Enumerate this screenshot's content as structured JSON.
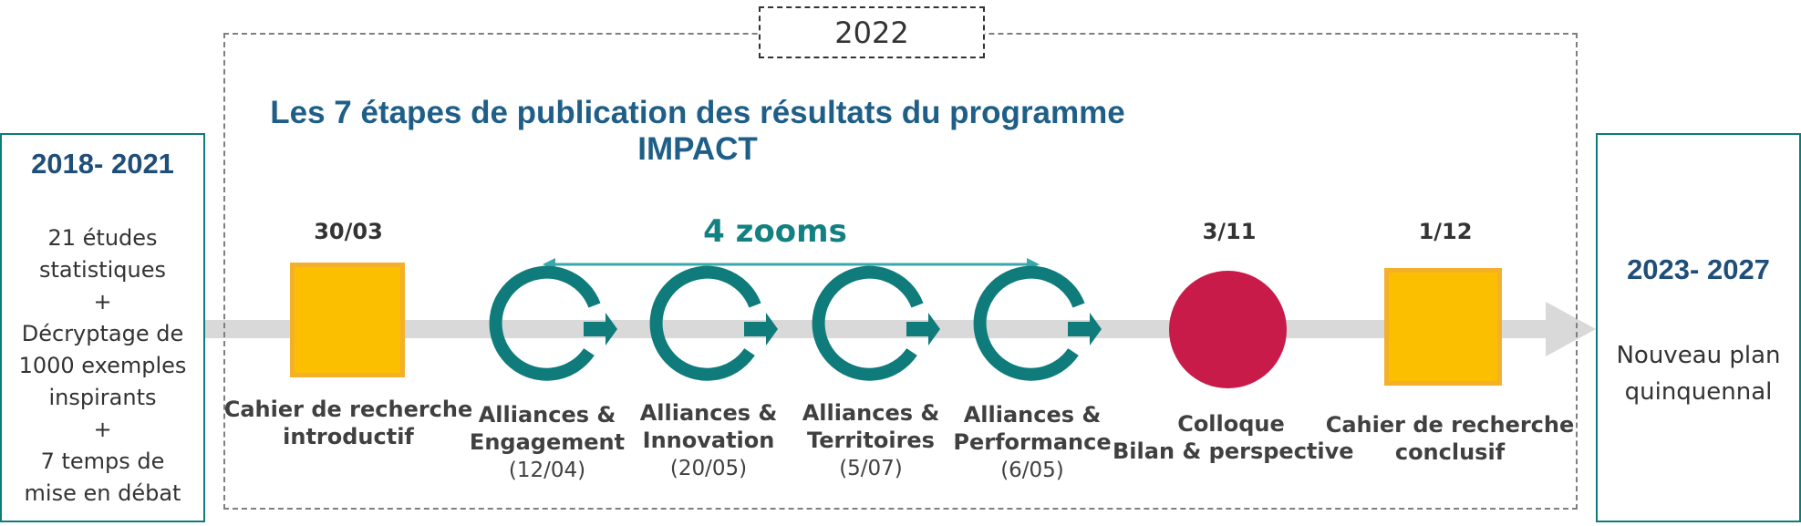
{
  "year_label": "2022",
  "title": "Les 7 étapes de publication des résultats du  programme IMPACT",
  "zooms_label": "4 zooms",
  "left_panel": {
    "title": "2018- 2021",
    "lines": [
      "21 études",
      "statistiques",
      "+",
      "Décryptage de",
      "1000 exemples",
      "inspirants",
      "+",
      "7 temps de",
      "mise en débat"
    ]
  },
  "right_panel": {
    "title": "2023- 2027",
    "lines": [
      "Nouveau plan",
      "quinquennal"
    ]
  },
  "steps": [
    {
      "shape": "square",
      "date": "30/03",
      "lines": [
        "Cahier de recherche",
        "introductif"
      ],
      "sub": ""
    },
    {
      "shape": "cycle",
      "date": "",
      "lines": [
        "Alliances &",
        "Engagement"
      ],
      "sub": "(12/04)"
    },
    {
      "shape": "cycle",
      "date": "",
      "lines": [
        "Alliances &",
        "Innovation"
      ],
      "sub": "(20/05)"
    },
    {
      "shape": "cycle",
      "date": "",
      "lines": [
        "Alliances &",
        "Territoires"
      ],
      "sub": "(5/07)"
    },
    {
      "shape": "cycle",
      "date": "",
      "lines": [
        "Alliances &",
        "Performance"
      ],
      "sub": "(6/05)"
    },
    {
      "shape": "circle",
      "date": "3/11",
      "lines": [
        "Colloque",
        "Bilan & perspective"
      ],
      "sub": ""
    },
    {
      "shape": "square",
      "date": "1/12",
      "lines": [
        "Cahier de recherche",
        "conclusif"
      ],
      "sub": ""
    }
  ],
  "colors": {
    "teal": "#0f7b7b",
    "navy": "#1f4e79",
    "yellow": "#fcbf00",
    "yellow_border": "#f4b02a",
    "crimson": "#c81b4a",
    "arrow_gray": "#d9d9d9"
  }
}
